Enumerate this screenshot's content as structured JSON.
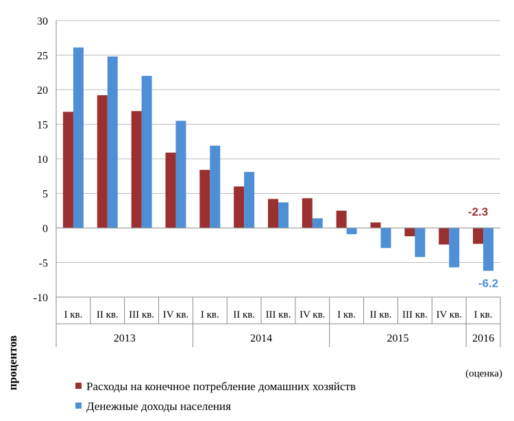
{
  "chart_data": {
    "type": "bar",
    "ylabel": "процентов",
    "ylim": [
      -10,
      30
    ],
    "yticks": [
      30,
      25,
      20,
      15,
      10,
      5,
      0,
      -5,
      -10
    ],
    "grid": true,
    "categories": [
      "I кв.",
      "II кв.",
      "III кв.",
      "IV кв.",
      "I кв.",
      "II кв.",
      "III кв.",
      "IV кв.",
      "I кв.",
      "II кв.",
      "III кв.",
      "IV кв.",
      "I кв."
    ],
    "year_groups": [
      {
        "label": "2013",
        "span": 4
      },
      {
        "label": "2014",
        "span": 4
      },
      {
        "label": "2015",
        "span": 4
      },
      {
        "label": "2016",
        "span": 1
      }
    ],
    "series": [
      {
        "name": "Расходы на конечное потребление домашних хозяйств",
        "color": "#9b3030",
        "values": [
          16.8,
          19.2,
          16.9,
          10.9,
          8.4,
          6.0,
          4.2,
          4.3,
          2.5,
          0.8,
          -1.2,
          -2.4,
          -2.3
        ]
      },
      {
        "name": "Денежные доходы населения",
        "color": "#4f8fd6",
        "values": [
          26.1,
          24.8,
          22.0,
          15.5,
          11.9,
          8.1,
          3.7,
          1.4,
          -0.9,
          -2.9,
          -4.2,
          -5.7,
          -6.2
        ]
      }
    ],
    "annotations": [
      {
        "text": "-2.3",
        "series": 0,
        "index": 12,
        "color": "#9b3030"
      },
      {
        "text": "-6.2",
        "series": 1,
        "index": 12,
        "color": "#4f8fd6"
      }
    ],
    "note": "(оценка)",
    "legend_position": "bottom-left"
  }
}
